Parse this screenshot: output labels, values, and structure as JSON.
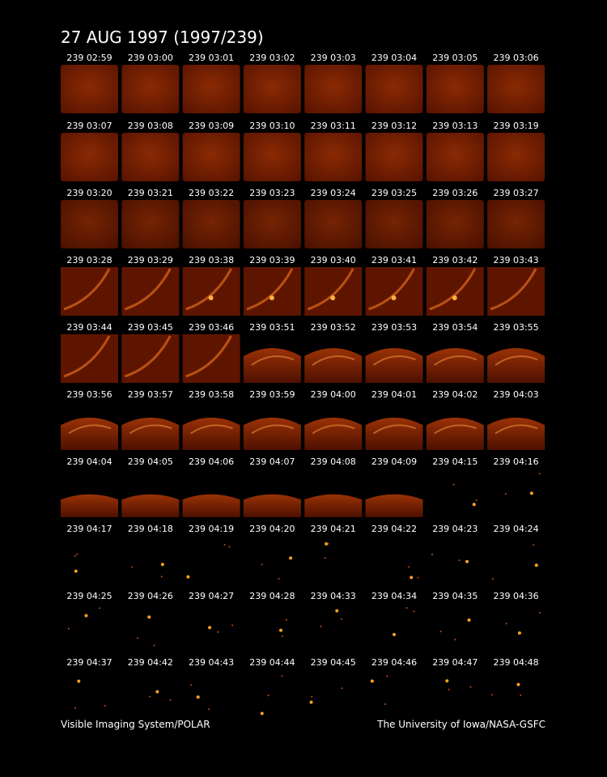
{
  "header": {
    "title": "27 AUG 1997  (1997/239)"
  },
  "grid": {
    "rows": [
      [
        "239 02:59",
        "239 03:00",
        "239 03:01",
        "239 03:02",
        "239 03:03",
        "239 03:04",
        "239 03:05",
        "239 03:06"
      ],
      [
        "239 03:07",
        "239 03:08",
        "239 03:09",
        "239 03:10",
        "239 03:11",
        "239 03:12",
        "239 03:13",
        "239 03:19"
      ],
      [
        "239 03:20",
        "239 03:21",
        "239 03:22",
        "239 03:23",
        "239 03:24",
        "239 03:25",
        "239 03:26",
        "239 03:27"
      ],
      [
        "239 03:28",
        "239 03:29",
        "239 03:38",
        "239 03:39",
        "239 03:40",
        "239 03:41",
        "239 03:42",
        "239 03:43"
      ],
      [
        "239 03:44",
        "239 03:45",
        "239 03:46",
        "239 03:51",
        "239 03:52",
        "239 03:53",
        "239 03:54",
        "239 03:55"
      ],
      [
        "239 03:56",
        "239 03:57",
        "239 03:58",
        "239 03:59",
        "239 04:00",
        "239 04:01",
        "239 04:02",
        "239 04:03"
      ],
      [
        "239 04:04",
        "239 04:05",
        "239 04:06",
        "239 04:07",
        "239 04:08",
        "239 04:09",
        "239 04:15",
        "239 04:16"
      ],
      [
        "239 04:17",
        "239 04:18",
        "239 04:19",
        "239 04:20",
        "239 04:21",
        "239 04:22",
        "239 04:23",
        "239 04:24"
      ],
      [
        "239 04:25",
        "239 04:26",
        "239 04:27",
        "239 04:28",
        "239 04:33",
        "239 04:34",
        "239 04:35",
        "239 04:36"
      ],
      [
        "239 04:37",
        "239 04:42",
        "239 04:43",
        "239 04:44",
        "239 04:45",
        "239 04:46",
        "239 04:47",
        "239 04:48"
      ]
    ]
  },
  "footer": {
    "left": "Visible Imaging System/POLAR",
    "right": "The University of Iowa/NASA-GSFC"
  }
}
